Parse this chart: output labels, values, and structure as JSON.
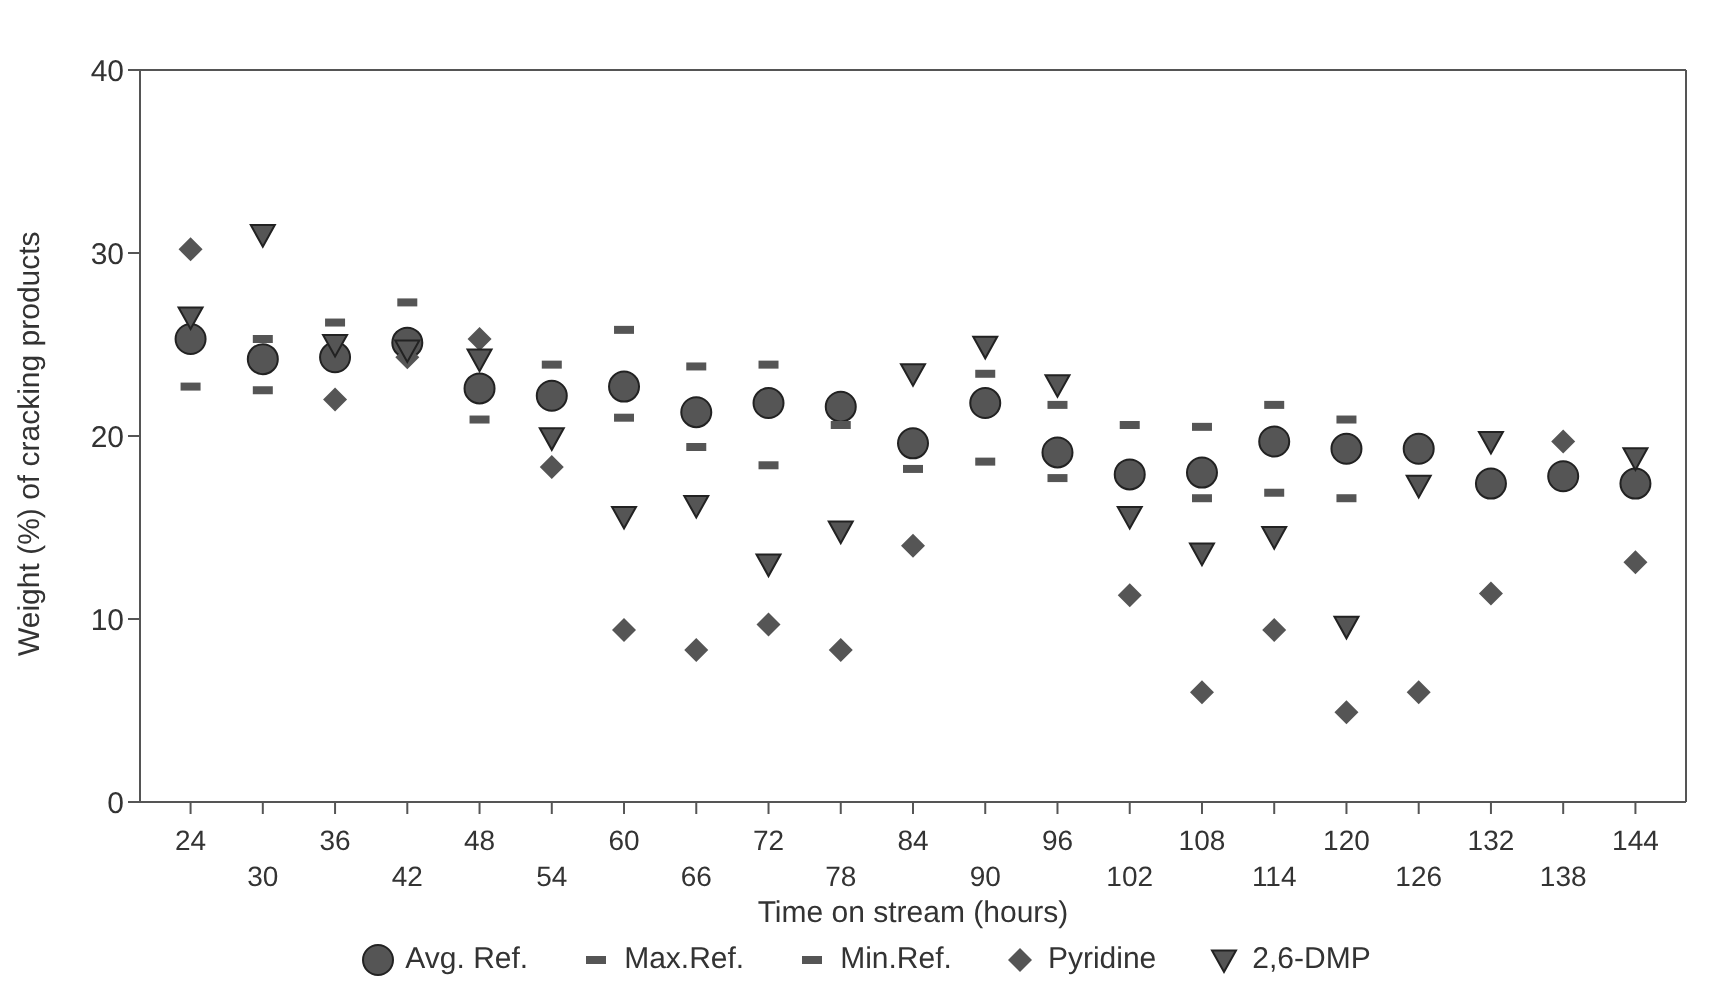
{
  "chart_data": {
    "type": "scatter",
    "xlabel": "Time on stream (hours)",
    "ylabel": "Weight (%) of cracking products",
    "categories": [
      "24",
      "30",
      "36",
      "42",
      "48",
      "54",
      "60",
      "66",
      "72",
      "78",
      "84",
      "90",
      "96",
      "102",
      "108",
      "114",
      "120",
      "126",
      "132",
      "138",
      "144"
    ],
    "ylim": [
      0,
      40
    ],
    "yticks": [
      0,
      10,
      20,
      30,
      40
    ],
    "grid": false,
    "legend": "bottom",
    "series": [
      {
        "name": "Avg. Ref.",
        "color": "#555555",
        "marker": "circle",
        "values": [
          25.3,
          24.2,
          24.3,
          25.1,
          22.6,
          22.2,
          22.7,
          21.3,
          21.8,
          21.6,
          19.6,
          21.8,
          19.1,
          17.9,
          18.0,
          19.7,
          19.3,
          19.3,
          17.4,
          17.8,
          17.4
        ]
      },
      {
        "name": "Max.Ref.",
        "color": "#555555",
        "values": [
          null,
          25.3,
          26.2,
          27.3,
          null,
          23.9,
          25.8,
          23.8,
          23.9,
          null,
          null,
          23.4,
          21.7,
          20.6,
          20.5,
          21.7,
          20.9,
          null,
          null,
          null,
          null
        ]
      },
      {
        "name": "Min.Ref.",
        "color": "#555555",
        "values": [
          22.7,
          22.5,
          null,
          null,
          20.9,
          null,
          21.0,
          19.4,
          18.4,
          20.6,
          18.2,
          18.6,
          17.7,
          null,
          16.6,
          16.9,
          16.6,
          null,
          null,
          null,
          null
        ]
      },
      {
        "name": "Pyridine",
        "color": "#555555",
        "marker": "diamond",
        "values": [
          30.2,
          null,
          22.0,
          24.3,
          25.3,
          18.3,
          9.4,
          8.3,
          9.7,
          8.3,
          14.0,
          null,
          null,
          11.3,
          6.0,
          9.4,
          4.9,
          6.0,
          11.4,
          19.7,
          13.1
        ]
      },
      {
        "name": "2,6-DMP",
        "color": "#555555",
        "marker": "triangle",
        "values": [
          26.5,
          31.0,
          25.0,
          24.7,
          24.2,
          19.9,
          15.6,
          16.2,
          13.0,
          14.8,
          23.4,
          24.9,
          22.8,
          15.6,
          13.6,
          14.5,
          9.6,
          17.3,
          19.7,
          null,
          18.8
        ]
      }
    ]
  }
}
